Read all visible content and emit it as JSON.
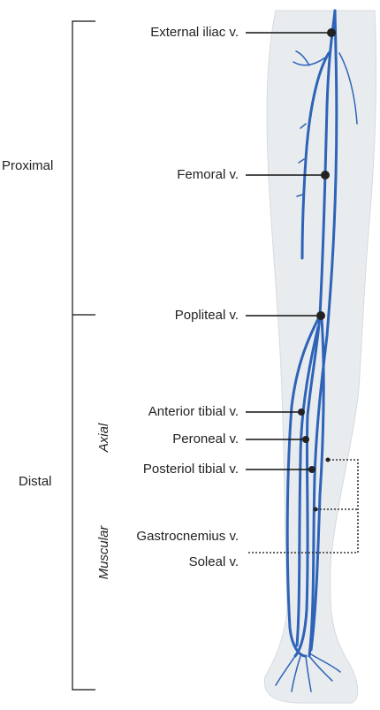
{
  "groups": [
    {
      "label": "Proximal"
    },
    {
      "label": "Distal"
    }
  ],
  "subgroups": [
    {
      "label": "Axial"
    },
    {
      "label": "Muscular"
    }
  ],
  "veins": [
    {
      "label": "External iliac v."
    },
    {
      "label": "Femoral v."
    },
    {
      "label": "Popliteal v."
    },
    {
      "label": "Anterior tibial v."
    },
    {
      "label": "Peroneal v."
    },
    {
      "label": "Posteriol tibial v."
    },
    {
      "label": "Gastrocnemius v."
    },
    {
      "label": "Soleal v."
    }
  ]
}
